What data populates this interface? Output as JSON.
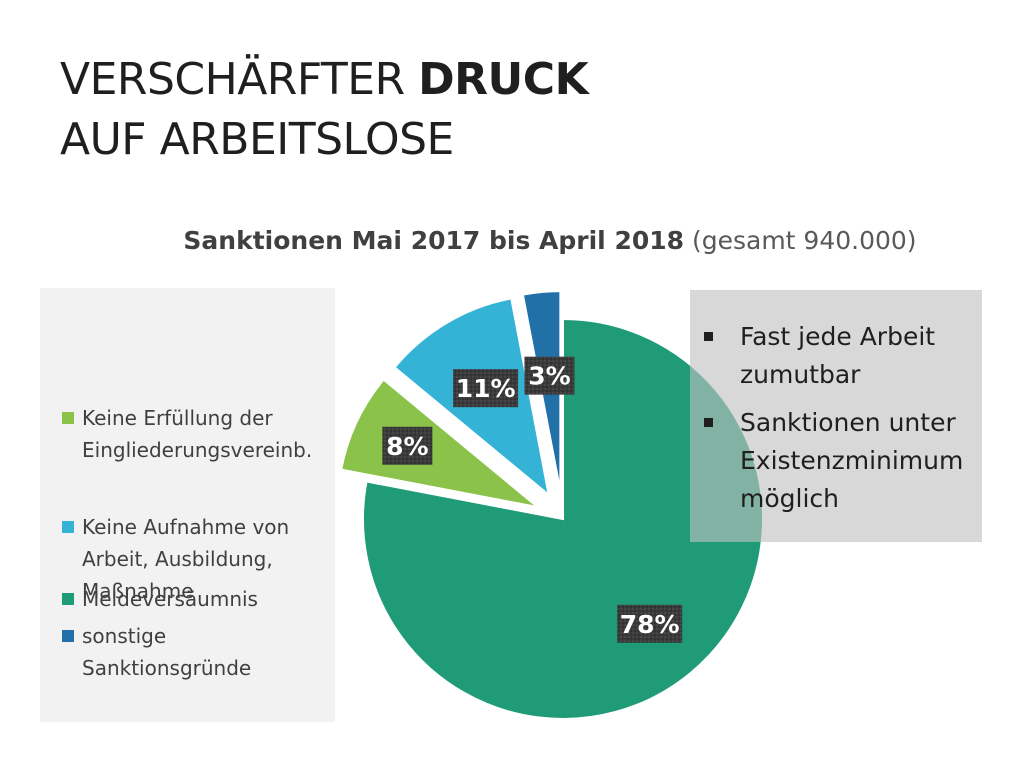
{
  "title": {
    "line1_regular": "VERSCHÄRFTER ",
    "line1_bold": "DRUCK",
    "line2": "AUF ARBEITSLOSE"
  },
  "chart_title": {
    "bold": "Sanktionen Mai 2017 bis April 2018",
    "normal": " (gesamt 940.000)"
  },
  "chart_data": {
    "type": "pie",
    "title": "Sanktionen Mai 2017 bis April 2018 (gesamt 940.000)",
    "categories": [
      "Meldeversäumnis",
      "Keine Erfüllung der Eingliederungsvereinb.",
      "Keine Aufnahme von Arbeit, Ausbildung, Maßnahme",
      "sonstige Sanktionsgründe"
    ],
    "values": [
      78,
      8,
      11,
      3
    ],
    "data_labels": [
      "78%",
      "8%",
      "11%",
      "3%"
    ],
    "colors": [
      "#1f9b77",
      "#8bc34a",
      "#35b3d6",
      "#2171a8"
    ],
    "exploded": [
      false,
      true,
      true,
      true
    ],
    "legend_position": "left"
  },
  "legend": {
    "items": [
      {
        "lines": [
          "Meldeversäumnis"
        ],
        "color": "#1f9b77"
      },
      {
        "lines": [
          "Keine Erfüllung der",
          "Eingliederungsvereinb."
        ],
        "color": "#8bc34a"
      },
      {
        "lines": [
          "Keine Aufnahme von",
          "Arbeit, Ausbildung,",
          "Maßnahme"
        ],
        "color": "#35b3d6"
      },
      {
        "lines": [
          "sonstige",
          "Sanktionsgründe"
        ],
        "color": "#2171a8"
      }
    ]
  },
  "info_box": {
    "items": [
      [
        "Fast jede Arbeit",
        "zumutbar"
      ],
      [
        "Sanktionen unter",
        "Existenzminimum",
        "möglich"
      ]
    ]
  }
}
